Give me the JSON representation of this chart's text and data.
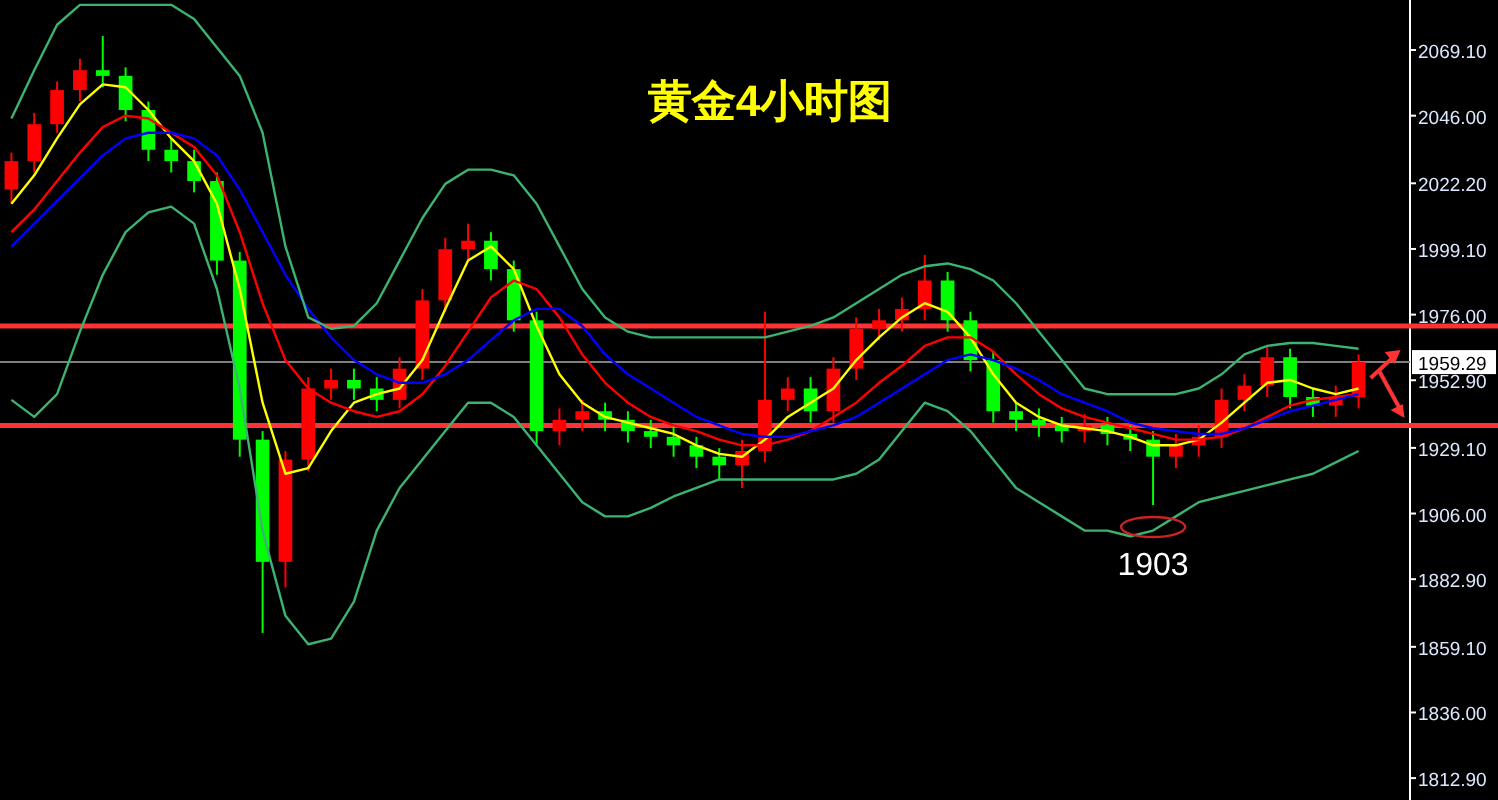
{
  "chart_data": {
    "type": "candlestick",
    "title": "黄金4小时图",
    "categories": [
      null,
      null,
      null,
      null,
      null,
      null,
      null,
      null,
      null,
      null,
      null,
      null,
      null,
      null,
      null,
      null,
      null,
      null,
      null,
      null,
      null,
      null,
      null,
      null,
      null,
      null,
      null,
      null,
      null,
      null,
      null,
      null,
      null,
      null,
      null,
      null,
      null,
      null,
      null,
      null,
      null,
      null,
      null,
      null,
      null,
      null,
      null,
      null,
      null,
      null,
      null,
      null,
      null,
      null,
      null,
      null,
      null,
      null,
      null,
      null
    ],
    "ohlc": [
      [
        2020,
        2033,
        2015,
        2030
      ],
      [
        2030,
        2047,
        2026,
        2043
      ],
      [
        2043,
        2058,
        2040,
        2055
      ],
      [
        2055,
        2066,
        2051,
        2062
      ],
      [
        2062,
        2074,
        2056,
        2060
      ],
      [
        2060,
        2063,
        2044,
        2048
      ],
      [
        2048,
        2051,
        2030,
        2034
      ],
      [
        2034,
        2038,
        2026,
        2030
      ],
      [
        2030,
        2034,
        2019,
        2023
      ],
      [
        2023,
        2026,
        1990,
        1995
      ],
      [
        1995,
        1998,
        1926,
        1932
      ],
      [
        1932,
        1935,
        1864,
        1889
      ],
      [
        1889,
        1928,
        1880,
        1925
      ],
      [
        1925,
        1954,
        1921,
        1950
      ],
      [
        1950,
        1957,
        1946,
        1953
      ],
      [
        1953,
        1957,
        1946,
        1950
      ],
      [
        1950,
        1954,
        1942,
        1946
      ],
      [
        1946,
        1961,
        1943,
        1957
      ],
      [
        1957,
        1985,
        1953,
        1981
      ],
      [
        1981,
        2003,
        1977,
        1999
      ],
      [
        1999,
        2008,
        1995,
        2002
      ],
      [
        2002,
        2005,
        1988,
        1992
      ],
      [
        1992,
        1995,
        1970,
        1974
      ],
      [
        1974,
        1977,
        1930,
        1935
      ],
      [
        1935,
        1943,
        1930,
        1939
      ],
      [
        1939,
        1946,
        1935,
        1942
      ],
      [
        1942,
        1945,
        1935,
        1939
      ],
      [
        1939,
        1942,
        1931,
        1935
      ],
      [
        1935,
        1939,
        1929,
        1933
      ],
      [
        1933,
        1937,
        1926,
        1930
      ],
      [
        1930,
        1933,
        1922,
        1926
      ],
      [
        1926,
        1929,
        1918,
        1923
      ],
      [
        1923,
        1932,
        1915,
        1928
      ],
      [
        1928,
        1977,
        1924,
        1946
      ],
      [
        1946,
        1954,
        1942,
        1950
      ],
      [
        1950,
        1954,
        1938,
        1942
      ],
      [
        1942,
        1961,
        1938,
        1957
      ],
      [
        1957,
        1975,
        1953,
        1971
      ],
      [
        1971,
        1978,
        1967,
        1974
      ],
      [
        1974,
        1982,
        1970,
        1978
      ],
      [
        1978,
        1997,
        1974,
        1988
      ],
      [
        1988,
        1991,
        1970,
        1974
      ],
      [
        1974,
        1977,
        1956,
        1960
      ],
      [
        1960,
        1963,
        1938,
        1942
      ],
      [
        1942,
        1945,
        1935,
        1939
      ],
      [
        1939,
        1943,
        1933,
        1937
      ],
      [
        1937,
        1940,
        1931,
        1935
      ],
      [
        1935,
        1941,
        1931,
        1937
      ],
      [
        1937,
        1940,
        1930,
        1934
      ],
      [
        1934,
        1937,
        1928,
        1932
      ],
      [
        1932,
        1935,
        1909,
        1926
      ],
      [
        1926,
        1934,
        1922,
        1930
      ],
      [
        1930,
        1937,
        1926,
        1933
      ],
      [
        1933,
        1950,
        1929,
        1946
      ],
      [
        1946,
        1955,
        1942,
        1951
      ],
      [
        1951,
        1965,
        1947,
        1961
      ],
      [
        1961,
        1964,
        1943,
        1947
      ],
      [
        1947,
        1950,
        1940,
        1944
      ],
      [
        1944,
        1951,
        1940,
        1947
      ],
      [
        1947,
        1962,
        1943,
        1959.29
      ]
    ],
    "colors": [
      "#ff0000",
      "#ff0000",
      "#ff0000",
      "#ff0000",
      "#00ff00",
      "#00ff00",
      "#00ff00",
      "#00ff00",
      "#00ff00",
      "#00ff00",
      "#00ff00",
      "#00ff00",
      "#ff0000",
      "#ff0000",
      "#ff0000",
      "#00ff00",
      "#00ff00",
      "#ff0000",
      "#ff0000",
      "#ff0000",
      "#ff0000",
      "#00ff00",
      "#00ff00",
      "#00ff00",
      "#ff0000",
      "#ff0000",
      "#00ff00",
      "#00ff00",
      "#00ff00",
      "#00ff00",
      "#00ff00",
      "#00ff00",
      "#ff0000",
      "#ff0000",
      "#ff0000",
      "#00ff00",
      "#ff0000",
      "#ff0000",
      "#ff0000",
      "#ff0000",
      "#ff0000",
      "#00ff00",
      "#00ff00",
      "#00ff00",
      "#00ff00",
      "#00ff00",
      "#00ff00",
      "#ff0000",
      "#00ff00",
      "#00ff00",
      "#00ff00",
      "#ff0000",
      "#ff0000",
      "#ff0000",
      "#ff0000",
      "#ff0000",
      "#00ff00",
      "#00ff00",
      "#ff0000",
      "#ff0000"
    ],
    "series": [
      {
        "type": "line",
        "color": "#ffff00",
        "values": [
          2015,
          2025,
          2038,
          2050,
          2057,
          2056,
          2048,
          2038,
          2030,
          2015,
          1985,
          1945,
          1920,
          1922,
          1935,
          1945,
          1948,
          1950,
          1960,
          1978,
          1995,
          2000,
          1992,
          1972,
          1955,
          1945,
          1940,
          1938,
          1936,
          1934,
          1930,
          1927,
          1926,
          1932,
          1940,
          1945,
          1950,
          1960,
          1968,
          1975,
          1980,
          1977,
          1968,
          1955,
          1945,
          1940,
          1937,
          1936,
          1935,
          1933,
          1930,
          1930,
          1932,
          1938,
          1945,
          1952,
          1953,
          1950,
          1948,
          1950
        ]
      },
      {
        "type": "line",
        "color": "#ff0000",
        "values": [
          2005,
          2013,
          2023,
          2033,
          2042,
          2046,
          2045,
          2040,
          2035,
          2025,
          2005,
          1980,
          1960,
          1950,
          1945,
          1942,
          1940,
          1942,
          1948,
          1958,
          1970,
          1982,
          1988,
          1985,
          1975,
          1962,
          1952,
          1945,
          1940,
          1937,
          1935,
          1932,
          1930,
          1930,
          1932,
          1935,
          1940,
          1945,
          1952,
          1958,
          1965,
          1968,
          1968,
          1963,
          1955,
          1948,
          1943,
          1940,
          1938,
          1936,
          1934,
          1932,
          1932,
          1933,
          1936,
          1940,
          1944,
          1946,
          1947,
          1948
        ]
      },
      {
        "type": "line",
        "color": "#0000ff",
        "values": [
          2000,
          2008,
          2016,
          2024,
          2032,
          2038,
          2040,
          2040,
          2038,
          2032,
          2020,
          2005,
          1990,
          1978,
          1968,
          1960,
          1955,
          1952,
          1952,
          1955,
          1960,
          1967,
          1974,
          1978,
          1978,
          1972,
          1962,
          1955,
          1950,
          1945,
          1940,
          1937,
          1934,
          1933,
          1933,
          1935,
          1937,
          1940,
          1945,
          1950,
          1955,
          1960,
          1962,
          1960,
          1957,
          1953,
          1948,
          1945,
          1942,
          1938,
          1936,
          1935,
          1934,
          1934,
          1936,
          1939,
          1942,
          1944,
          1946,
          1948
        ]
      },
      {
        "type": "line",
        "color": "#3cb371",
        "values": [
          2045,
          2062,
          2078,
          2085,
          2085,
          2085,
          2085,
          2085,
          2080,
          2070,
          2060,
          2040,
          2000,
          1975,
          1971,
          1972,
          1980,
          1995,
          2010,
          2022,
          2027,
          2027,
          2025,
          2015,
          2000,
          1985,
          1975,
          1970,
          1968,
          1968,
          1968,
          1968,
          1968,
          1968,
          1970,
          1972,
          1975,
          1980,
          1985,
          1990,
          1993,
          1994,
          1992,
          1988,
          1980,
          1970,
          1960,
          1950,
          1948,
          1948,
          1948,
          1948,
          1950,
          1955,
          1962,
          1965,
          1966,
          1966,
          1965,
          1964
        ]
      },
      {
        "type": "line",
        "color": "#3cb371",
        "values": [
          1946,
          1940,
          1948,
          1970,
          1990,
          2005,
          2012,
          2014,
          2008,
          1985,
          1950,
          1900,
          1870,
          1860,
          1862,
          1875,
          1900,
          1915,
          1925,
          1935,
          1945,
          1945,
          1940,
          1930,
          1920,
          1910,
          1905,
          1905,
          1908,
          1912,
          1915,
          1918,
          1918,
          1918,
          1918,
          1918,
          1918,
          1920,
          1925,
          1935,
          1945,
          1942,
          1935,
          1925,
          1915,
          1910,
          1905,
          1900,
          1900,
          1898,
          1900,
          1905,
          1910,
          1912,
          1914,
          1916,
          1918,
          1920,
          1924,
          1928
        ]
      }
    ],
    "ylim": [
      1805.2,
      2086.7
    ],
    "yticks": [
      {
        "value": 2069.1,
        "label": "2069.10"
      },
      {
        "value": 2046,
        "label": "2046.00"
      },
      {
        "value": 2022.2,
        "label": "2022.20"
      },
      {
        "value": 1999.1,
        "label": "1999.10"
      },
      {
        "value": 1976,
        "label": "1976.00"
      },
      {
        "value": 1952.9,
        "label": "1952.90"
      },
      {
        "value": 1929.1,
        "label": "1929.10"
      },
      {
        "value": 1906,
        "label": "1906.00"
      },
      {
        "value": 1882.9,
        "label": "1882.90"
      },
      {
        "value": 1859.1,
        "label": "1859.10"
      },
      {
        "value": 1836,
        "label": "1836.00"
      },
      {
        "value": 1812.9,
        "label": "1812.90"
      }
    ],
    "ref_lines": [
      {
        "axis": "y",
        "value": 1972,
        "color": "#ff3333"
      },
      {
        "axis": "y",
        "value": 1937,
        "color": "#ff3333"
      },
      {
        "axis": "y",
        "value": 1959.29,
        "label": "1959.29",
        "color": "#808080"
      }
    ],
    "annotations": [
      "1903"
    ]
  }
}
